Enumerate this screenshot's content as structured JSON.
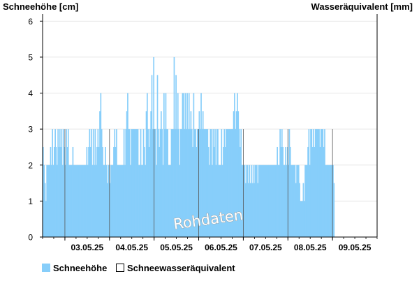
{
  "chart_data": {
    "type": "bar",
    "ylabel_left": "Schneehöhe [cm]",
    "ylabel_right": "Wasseräquivalent [mm]",
    "ylim": [
      0,
      6.2
    ],
    "yticks": [
      "0",
      "1",
      "2",
      "3",
      "4",
      "5",
      "6"
    ],
    "xlim": [
      "02.05.25 12:00",
      "09.05.25 24:00"
    ],
    "x_tick_labels": [
      "03.05.25",
      "04.05.25",
      "05.05.25",
      "06.05.25",
      "07.05.25",
      "08.05.25",
      "09.05.25"
    ],
    "grid": true,
    "legend_placement": "bottom-left",
    "annotation": "Rohdaten",
    "colors": {
      "snow_fill": "#87cefa",
      "swe_fill": "#ffffff",
      "grid": "#e6e6e6",
      "axis": "#000000"
    },
    "series": [
      {
        "name": "Schneehöhe",
        "start": "02.05.25 12:00",
        "interval_minutes": 30,
        "values": [
          2.5,
          2,
          1.5,
          1,
          2,
          2,
          2,
          2,
          2.5,
          2,
          3,
          2,
          2.5,
          3,
          2.5,
          2,
          3,
          2.5,
          3,
          2.5,
          3,
          2,
          3,
          2.5,
          2,
          3,
          2.5,
          3,
          2,
          2,
          2,
          2,
          2.5,
          2,
          2,
          2,
          2,
          2,
          2,
          2,
          2,
          2,
          2,
          2,
          2,
          2,
          2,
          2.5,
          2,
          2.5,
          3,
          2.5,
          3,
          2,
          3,
          2,
          3,
          2,
          2.5,
          3,
          2.5,
          3.5,
          4,
          3,
          2.5,
          2,
          2,
          2.5,
          2,
          1.5,
          2,
          2,
          1.5,
          2,
          2,
          2,
          2.5,
          3,
          2.5,
          3,
          2,
          2,
          2,
          2,
          2,
          2,
          2,
          3,
          2,
          3,
          3.5,
          4,
          3,
          3,
          2,
          3,
          3,
          3,
          3,
          3,
          3,
          3,
          3,
          2,
          2,
          3,
          2,
          2,
          3,
          2.5,
          2,
          3.5,
          4,
          3,
          2.5,
          3,
          3.5,
          4.5,
          3,
          5,
          3,
          3,
          2,
          4.5,
          3,
          2.5,
          3,
          3.5,
          3,
          2,
          4,
          3,
          4,
          3,
          3,
          2,
          2,
          2,
          3,
          3,
          3,
          5,
          3,
          4.5,
          3,
          4,
          3,
          2,
          3,
          3,
          4,
          4,
          3,
          4,
          3,
          4,
          3,
          4,
          3,
          3.5,
          3,
          2.5,
          4,
          3,
          3,
          2.5,
          3,
          3,
          3.5,
          3,
          4,
          3,
          3.5,
          3,
          3,
          3,
          3,
          3,
          2.5,
          2,
          3,
          3,
          2,
          3,
          2.5,
          3,
          2,
          3,
          3,
          2,
          2,
          2,
          3,
          2,
          2.5,
          3,
          2.5,
          3,
          3,
          3,
          3,
          3,
          3,
          3,
          3,
          3.5,
          4,
          3,
          3.5,
          4,
          3.5,
          3,
          2.5,
          3,
          2,
          2,
          2,
          2,
          1.5,
          2,
          2,
          1.5,
          2,
          1.5,
          2,
          1.5,
          2,
          1.5,
          2,
          2,
          2,
          1.5,
          2,
          2,
          2,
          2,
          2,
          2,
          2,
          2,
          2,
          2,
          2,
          2,
          2,
          2,
          2,
          2,
          2,
          2,
          2,
          2,
          2.5,
          2,
          2,
          3,
          2.5,
          3,
          2.5,
          2,
          2,
          2.5,
          2,
          2.5,
          2,
          3,
          2.5,
          2,
          2,
          2,
          2,
          2,
          1.5,
          2,
          2,
          2,
          1.5,
          1,
          1,
          1,
          1.5,
          1,
          2,
          2,
          2,
          2.5,
          3,
          2,
          3,
          3,
          2.5,
          3,
          2.5,
          3,
          3,
          3,
          3,
          3,
          2.5,
          3,
          3,
          3,
          2.5,
          3,
          2,
          2,
          2,
          2,
          2,
          2,
          2,
          2,
          2,
          1.5
        ]
      },
      {
        "name": "Schneewasseräquivalent",
        "values": []
      }
    ]
  }
}
